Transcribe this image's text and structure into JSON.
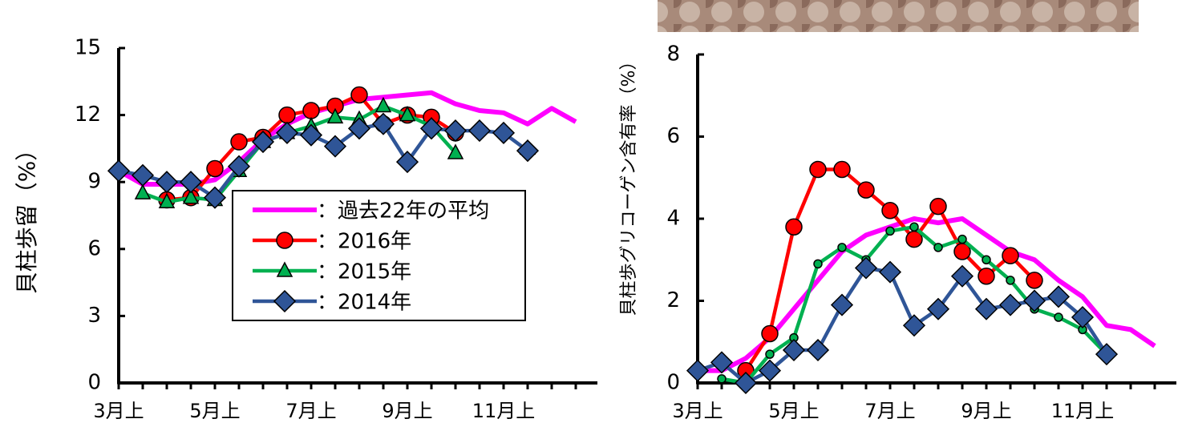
{
  "chart_data": [
    {
      "type": "line",
      "y_label": "貝柱歩留（%）",
      "categories": [
        "3月上",
        null,
        null,
        null,
        "5月上",
        null,
        null,
        null,
        "7月上",
        null,
        null,
        null,
        "9月上",
        null,
        null,
        null,
        "11月上",
        null,
        null,
        null
      ],
      "ylim": [
        0,
        15
      ],
      "yticks": [
        0,
        3,
        6,
        9,
        12,
        15
      ],
      "legend": "center",
      "series": [
        {
          "name": "：過去22年の平均",
          "color": "#ff00ff",
          "marker": "none",
          "values": [
            9.5,
            8.9,
            8.9,
            8.9,
            9.1,
            9.9,
            10.9,
            11.6,
            12.1,
            12.4,
            12.7,
            12.8,
            12.9,
            13.0,
            12.5,
            12.2,
            12.1,
            11.6,
            12.3,
            11.7
          ]
        },
        {
          "name": "：2016年",
          "color": "#ff0000",
          "marker": "circle",
          "values": [
            null,
            null,
            8.2,
            8.3,
            9.6,
            10.8,
            11.0,
            12.0,
            12.2,
            12.4,
            12.9,
            11.6,
            12.0,
            11.9,
            11.2,
            null,
            null,
            null,
            null,
            null
          ]
        },
        {
          "name": "：2015年",
          "color": "#00b050",
          "marker": "triangle",
          "values": [
            null,
            8.5,
            8.1,
            8.3,
            8.2,
            9.5,
            10.8,
            11.2,
            11.5,
            11.9,
            11.8,
            12.4,
            12.0,
            11.5,
            10.3,
            null,
            null,
            10.5,
            null,
            null
          ]
        },
        {
          "name": "：2014年",
          "color": "#2f5597",
          "marker": "diamond",
          "values": [
            9.5,
            9.3,
            9.0,
            9.0,
            8.3,
            9.7,
            10.8,
            11.2,
            11.1,
            10.6,
            11.4,
            11.6,
            9.9,
            11.4,
            11.3,
            11.3,
            11.2,
            10.4,
            null,
            null
          ]
        }
      ]
    },
    {
      "type": "line",
      "y_label": "貝柱歩グリコーゲン含有率（%）",
      "categories": [
        "3月上",
        null,
        null,
        null,
        "5月上",
        null,
        null,
        null,
        "7月上",
        null,
        null,
        null,
        "9月上",
        null,
        null,
        null,
        "11月上",
        null,
        null,
        null
      ],
      "ylim": [
        0,
        8
      ],
      "yticks": [
        0,
        2,
        4,
        6,
        8
      ],
      "series": [
        {
          "color": "#ff00ff",
          "marker": "none",
          "values": [
            0.3,
            0.3,
            0.6,
            1.1,
            1.8,
            2.5,
            3.2,
            3.6,
            3.8,
            4.0,
            3.9,
            4.0,
            3.6,
            3.2,
            3.0,
            2.5,
            2.1,
            1.4,
            1.3,
            0.9
          ]
        },
        {
          "color": "#ff0000",
          "marker": "circle",
          "values": [
            null,
            null,
            0.3,
            1.2,
            3.8,
            5.2,
            5.2,
            4.7,
            4.2,
            3.5,
            4.3,
            3.2,
            2.6,
            3.1,
            2.5,
            null,
            null,
            null,
            null,
            null
          ]
        },
        {
          "color": "#00b050",
          "marker": "small-circle",
          "values": [
            null,
            0.1,
            0.0,
            0.7,
            1.1,
            2.9,
            3.3,
            3.0,
            3.7,
            3.8,
            3.3,
            3.5,
            3.0,
            2.5,
            1.8,
            1.6,
            1.3,
            0.7,
            null,
            null
          ]
        },
        {
          "color": "#2f5597",
          "marker": "diamond",
          "values": [
            0.3,
            0.5,
            0.0,
            0.3,
            0.8,
            0.8,
            1.9,
            2.8,
            2.7,
            1.4,
            1.8,
            2.6,
            1.8,
            1.9,
            2.0,
            2.1,
            1.6,
            0.7,
            null,
            null
          ]
        }
      ]
    }
  ]
}
